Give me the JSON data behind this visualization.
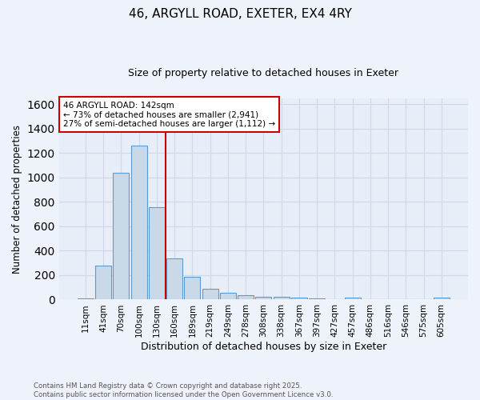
{
  "title1": "46, ARGYLL ROAD, EXETER, EX4 4RY",
  "title2": "Size of property relative to detached houses in Exeter",
  "xlabel": "Distribution of detached houses by size in Exeter",
  "ylabel": "Number of detached properties",
  "categories": [
    "11sqm",
    "41sqm",
    "70sqm",
    "100sqm",
    "130sqm",
    "160sqm",
    "189sqm",
    "219sqm",
    "249sqm",
    "278sqm",
    "308sqm",
    "338sqm",
    "367sqm",
    "397sqm",
    "427sqm",
    "457sqm",
    "486sqm",
    "516sqm",
    "546sqm",
    "575sqm",
    "605sqm"
  ],
  "values": [
    10,
    280,
    1040,
    1260,
    760,
    335,
    185,
    85,
    55,
    35,
    25,
    20,
    15,
    10,
    0,
    15,
    0,
    0,
    0,
    0,
    15
  ],
  "bar_color": "#c9d9e8",
  "bar_edge_color": "#5b9bd5",
  "bg_color": "#e8eef8",
  "grid_color": "#d0d8e8",
  "redline_x": 4.52,
  "annotation_line1": "46 ARGYLL ROAD: 142sqm",
  "annotation_line2": "← 73% of detached houses are smaller (2,941)",
  "annotation_line3": "27% of semi-detached houses are larger (1,112) →",
  "annotation_box_color": "#ffffff",
  "annotation_box_edge": "#cc0000",
  "ylim": [
    0,
    1650
  ],
  "yticks": [
    0,
    200,
    400,
    600,
    800,
    1000,
    1200,
    1400,
    1600
  ],
  "footnote": "Contains HM Land Registry data © Crown copyright and database right 2025.\nContains public sector information licensed under the Open Government Licence v3.0."
}
